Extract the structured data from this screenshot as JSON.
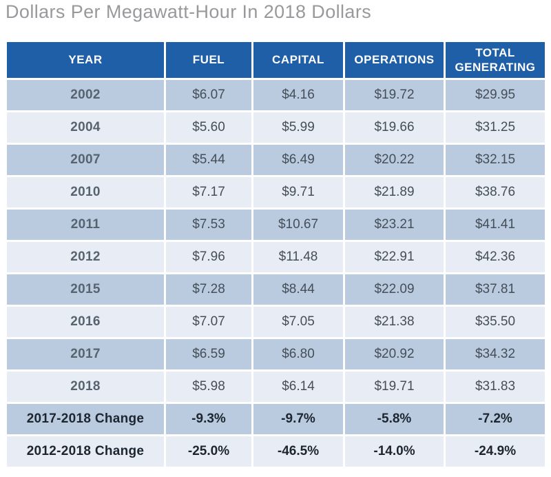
{
  "title": "Dollars Per Megawatt-Hour In 2018 Dollars",
  "colors": {
    "header_bg": "#1f5fa8",
    "header_text": "#ffffff",
    "row_dark_bg": "#bacbe0",
    "row_light_bg": "#e8ecf5",
    "year_text": "#57636f",
    "value_text": "#454e58",
    "change_text": "#1d2630",
    "title_text": "#98999c"
  },
  "chart_data": {
    "type": "table",
    "title": "Dollars Per Megawatt-Hour In 2018 Dollars",
    "columns": [
      "YEAR",
      "FUEL",
      "CAPITAL",
      "OPERATIONS",
      "TOTAL GENERATING"
    ],
    "rows": [
      {
        "label": "2002",
        "values": [
          "$6.07",
          "$4.16",
          "$19.72",
          "$29.95"
        ],
        "emphasis": false
      },
      {
        "label": "2004",
        "values": [
          "$5.60",
          "$5.99",
          "$19.66",
          "$31.25"
        ],
        "emphasis": false
      },
      {
        "label": "2007",
        "values": [
          "$5.44",
          "$6.49",
          "$20.22",
          "$32.15"
        ],
        "emphasis": false
      },
      {
        "label": "2010",
        "values": [
          "$7.17",
          "$9.71",
          "$21.89",
          "$38.76"
        ],
        "emphasis": false
      },
      {
        "label": "2011",
        "values": [
          "$7.53",
          "$10.67",
          "$23.21",
          "$41.41"
        ],
        "emphasis": false
      },
      {
        "label": "2012",
        "values": [
          "$7.96",
          "$11.48",
          "$22.91",
          "$42.36"
        ],
        "emphasis": false
      },
      {
        "label": "2015",
        "values": [
          "$7.28",
          "$8.44",
          "$22.09",
          "$37.81"
        ],
        "emphasis": false
      },
      {
        "label": "2016",
        "values": [
          "$7.07",
          "$7.05",
          "$21.38",
          "$35.50"
        ],
        "emphasis": false
      },
      {
        "label": "2017",
        "values": [
          "$6.59",
          "$6.80",
          "$20.92",
          "$34.32"
        ],
        "emphasis": false
      },
      {
        "label": "2018",
        "values": [
          "$5.98",
          "$6.14",
          "$19.71",
          "$31.83"
        ],
        "emphasis": false
      },
      {
        "label": "2017-2018 Change",
        "values": [
          "-9.3%",
          "-9.7%",
          "-5.8%",
          "-7.2%"
        ],
        "emphasis": true
      },
      {
        "label": "2012-2018 Change",
        "values": [
          "-25.0%",
          "-46.5%",
          "-14.0%",
          "-24.9%"
        ],
        "emphasis": true
      }
    ]
  }
}
